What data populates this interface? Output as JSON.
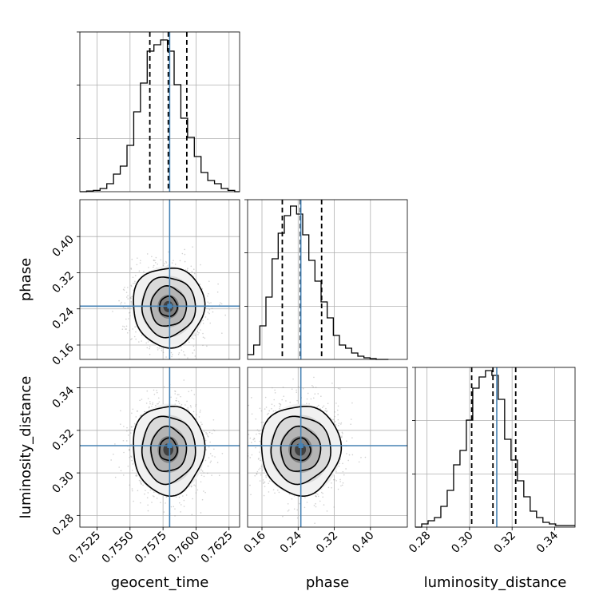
{
  "chart_data": {
    "type": "corner",
    "colors": {
      "truth": "#4682b4",
      "line": "#000000",
      "grid": "#b0b0b0",
      "point": "#9a9a9a"
    },
    "parameters": [
      {
        "name": "geocent_time",
        "label": "geocent_time",
        "range": [
          0.7512,
          0.7633
        ],
        "ticks": [
          0.7525,
          0.755,
          0.7575,
          0.76,
          0.7625
        ],
        "tick_labels": [
          "0.7525",
          "0.7550",
          "0.7575",
          "0.7600",
          "0.7625"
        ],
        "truth": 0.758,
        "median": 0.7579,
        "quantiles": [
          0.7565,
          0.7593
        ],
        "sigma": 0.00135,
        "hist_bins": [
          0.7512,
          0.75171,
          0.75222,
          0.75273,
          0.75324,
          0.75375,
          0.75426,
          0.75477,
          0.75528,
          0.75579,
          0.7563,
          0.75681,
          0.75732,
          0.75783,
          0.75834,
          0.75885,
          0.75936,
          0.75987,
          0.76038,
          0.76089,
          0.7614,
          0.76191,
          0.76242,
          0.76293,
          0.7633
        ],
        "hist_values": [
          0.0,
          0.004,
          0.008,
          0.02,
          0.05,
          0.11,
          0.16,
          0.29,
          0.5,
          0.68,
          0.88,
          0.92,
          0.95,
          0.88,
          0.67,
          0.46,
          0.34,
          0.22,
          0.12,
          0.07,
          0.05,
          0.02,
          0.008,
          0.0
        ],
        "hist_ticks": [
          0.333,
          0.667,
          1.0
        ]
      },
      {
        "name": "phase",
        "label": "phase",
        "range": [
          0.1282,
          0.4816
        ],
        "ticks": [
          0.16,
          0.24,
          0.32,
          0.4
        ],
        "tick_labels": [
          "0.16",
          "0.24",
          "0.32",
          "0.40"
        ],
        "truth": 0.246,
        "median": 0.245,
        "quantiles": [
          0.205,
          0.292
        ],
        "sigma": 0.044,
        "hist_bins": [
          0.1282,
          0.1417,
          0.1553,
          0.1688,
          0.1824,
          0.1959,
          0.2095,
          0.223,
          0.2366,
          0.2501,
          0.2637,
          0.2772,
          0.2908,
          0.3043,
          0.3179,
          0.3314,
          0.345,
          0.3585,
          0.3721,
          0.3856,
          0.3992,
          0.4127,
          0.4263,
          0.4398
        ],
        "hist_values": [
          0.03,
          0.09,
          0.21,
          0.39,
          0.63,
          0.79,
          0.9,
          0.96,
          0.91,
          0.78,
          0.62,
          0.49,
          0.36,
          0.26,
          0.15,
          0.09,
          0.07,
          0.04,
          0.02,
          0.01,
          0.005,
          0.0,
          0.0
        ],
        "hist_ticks": [
          0.333,
          0.667,
          1.0
        ]
      },
      {
        "name": "luminosity_distance",
        "label": "luminosity_distance",
        "range": [
          0.2745,
          0.3496
        ],
        "ticks": [
          0.28,
          0.3,
          0.32,
          0.34
        ],
        "tick_labels": [
          "0.28",
          "0.30",
          "0.32",
          "0.34"
        ],
        "truth": 0.3128,
        "median": 0.311,
        "quantiles": [
          0.301,
          0.3217
        ],
        "sigma": 0.0105,
        "hist_bins": [
          0.2745,
          0.2775,
          0.2805,
          0.2835,
          0.2865,
          0.2895,
          0.2925,
          0.2955,
          0.2985,
          0.3015,
          0.3045,
          0.3075,
          0.3105,
          0.3135,
          0.3165,
          0.3195,
          0.3225,
          0.3255,
          0.3285,
          0.3315,
          0.3345,
          0.3375,
          0.3405,
          0.3435,
          0.3496
        ],
        "hist_values": [
          0.0,
          0.02,
          0.04,
          0.06,
          0.13,
          0.23,
          0.39,
          0.48,
          0.67,
          0.87,
          0.94,
          0.98,
          0.95,
          0.8,
          0.55,
          0.42,
          0.29,
          0.19,
          0.1,
          0.06,
          0.03,
          0.02,
          0.01,
          0.01
        ],
        "hist_ticks": [
          0.333,
          0.667,
          1.0
        ]
      }
    ]
  }
}
